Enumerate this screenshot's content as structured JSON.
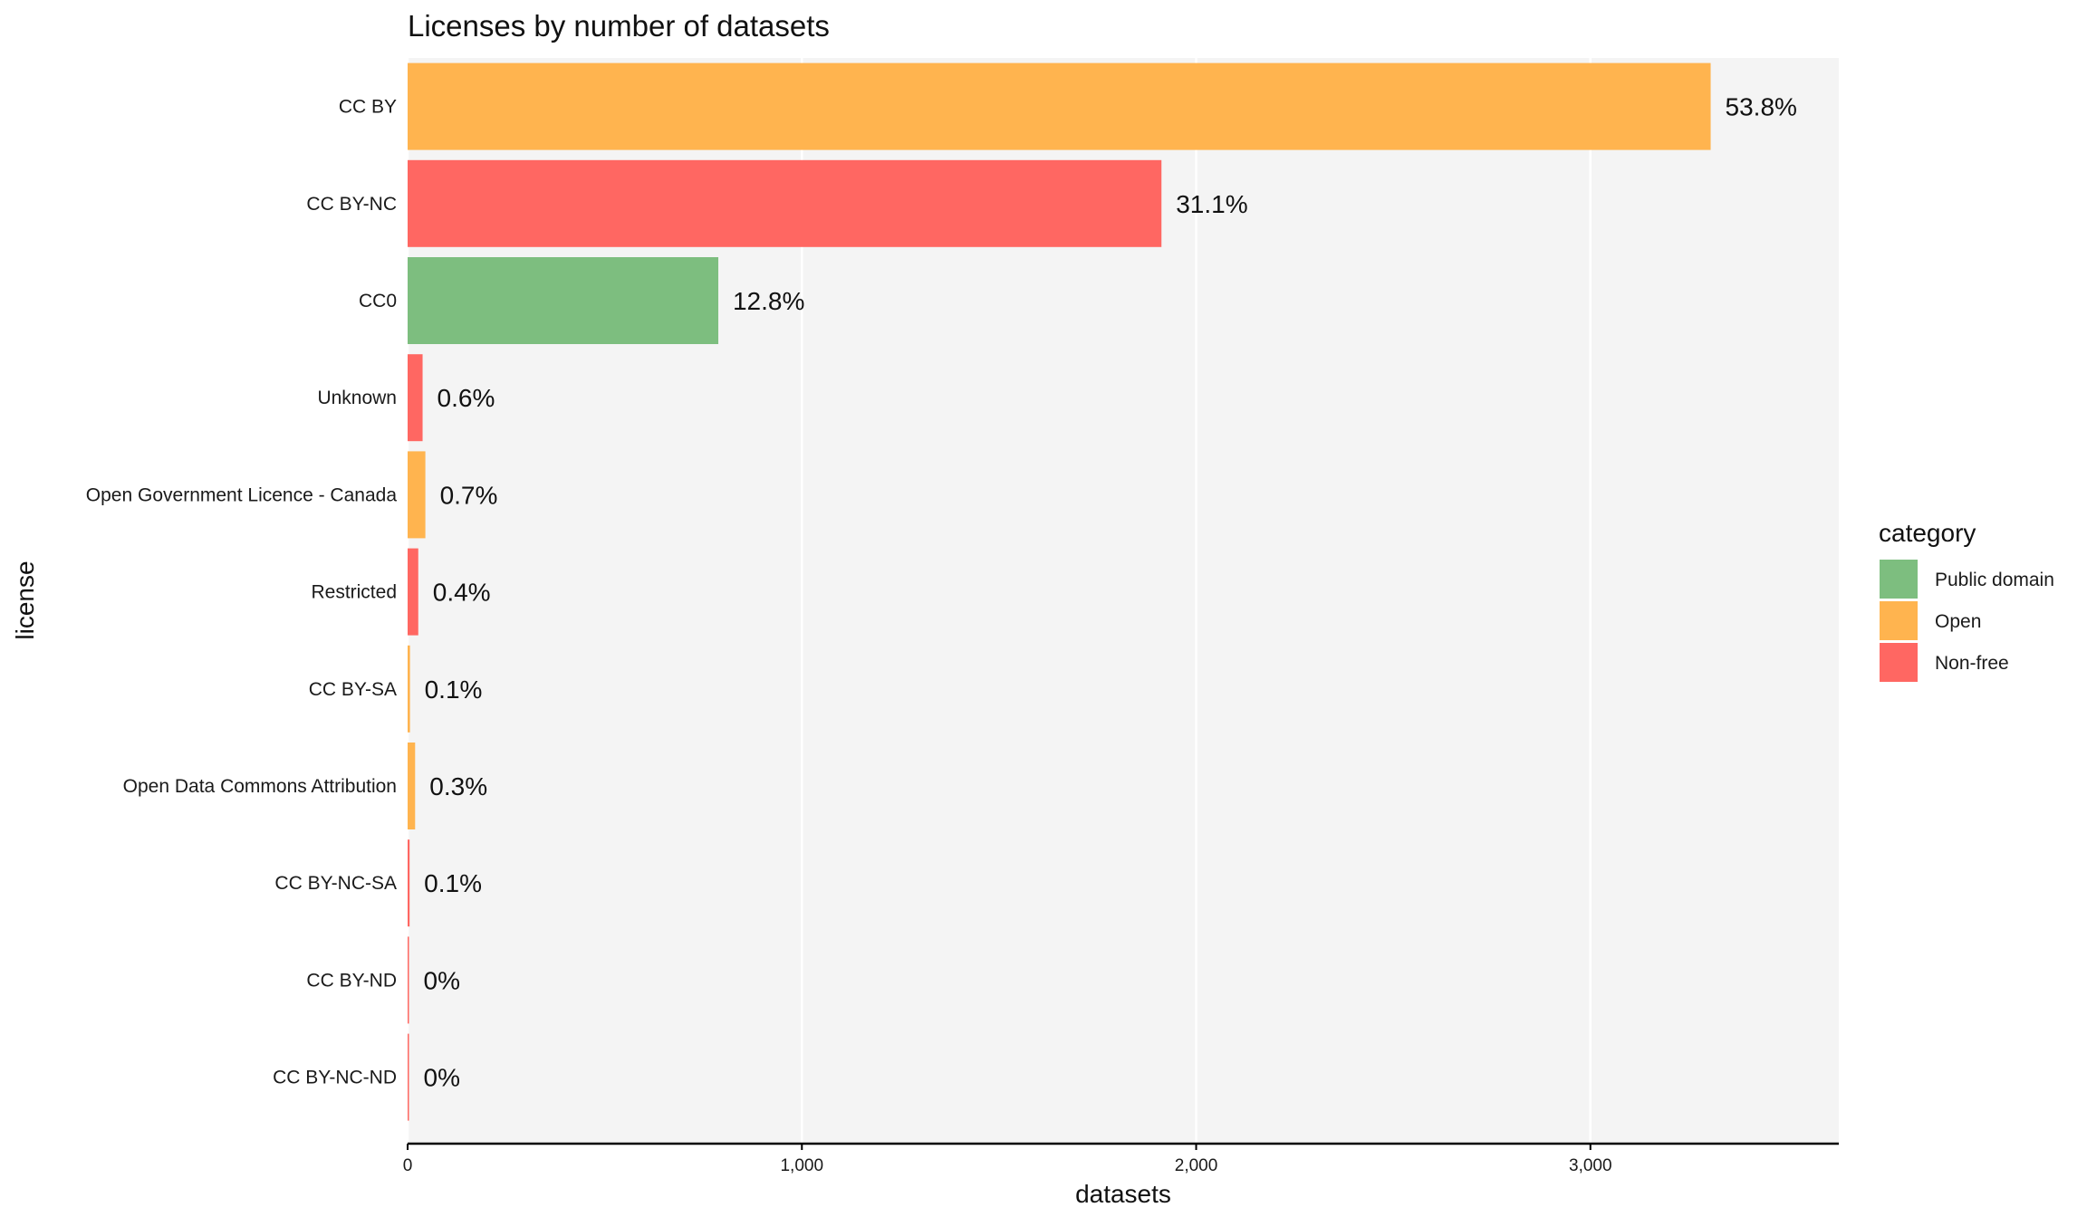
{
  "chart_data": {
    "type": "bar",
    "orientation": "horizontal",
    "title": "Licenses by number of datasets",
    "xlabel": "datasets",
    "ylabel": "license",
    "xlim": [
      0,
      3630
    ],
    "xticks": [
      0,
      1000,
      2000,
      3000
    ],
    "xtick_labels": [
      "0",
      "1,000",
      "2,000",
      "3,000"
    ],
    "grid": "vertical major lines, white on grey panel",
    "legend": {
      "title": "category",
      "position": "right",
      "entries": [
        {
          "label": "Public domain",
          "color": "#7dbe7f"
        },
        {
          "label": "Open",
          "color": "#ffb44f"
        },
        {
          "label": "Non-free",
          "color": "#ff6762"
        }
      ]
    },
    "bars": [
      {
        "license": "CC BY",
        "value": 3305,
        "category": "Open",
        "label": "53.8%"
      },
      {
        "license": "CC BY-NC",
        "value": 1912,
        "category": "Non-free",
        "label": "31.1%"
      },
      {
        "license": "CC0",
        "value": 788,
        "category": "Public domain",
        "label": "12.8%"
      },
      {
        "license": "Unknown",
        "value": 38,
        "category": "Non-free",
        "label": "0.6%"
      },
      {
        "license": "Open Government Licence - Canada",
        "value": 45,
        "category": "Open",
        "label": "0.7%"
      },
      {
        "license": "Restricted",
        "value": 27,
        "category": "Non-free",
        "label": "0.4%"
      },
      {
        "license": "CC BY-SA",
        "value": 6,
        "category": "Open",
        "label": "0.1%"
      },
      {
        "license": "Open Data Commons Attribution",
        "value": 19,
        "category": "Open",
        "label": "0.3%"
      },
      {
        "license": "CC BY-NC-SA",
        "value": 5,
        "category": "Non-free",
        "label": "0.1%"
      },
      {
        "license": "CC BY-ND",
        "value": 1,
        "category": "Non-free",
        "label": "0%"
      },
      {
        "license": "CC BY-NC-ND",
        "value": 1,
        "category": "Non-free",
        "label": "0%"
      }
    ]
  },
  "colors": {
    "panel_background": "#f4f4f4",
    "grid": "#ffffff",
    "axis_line": "#000000"
  }
}
